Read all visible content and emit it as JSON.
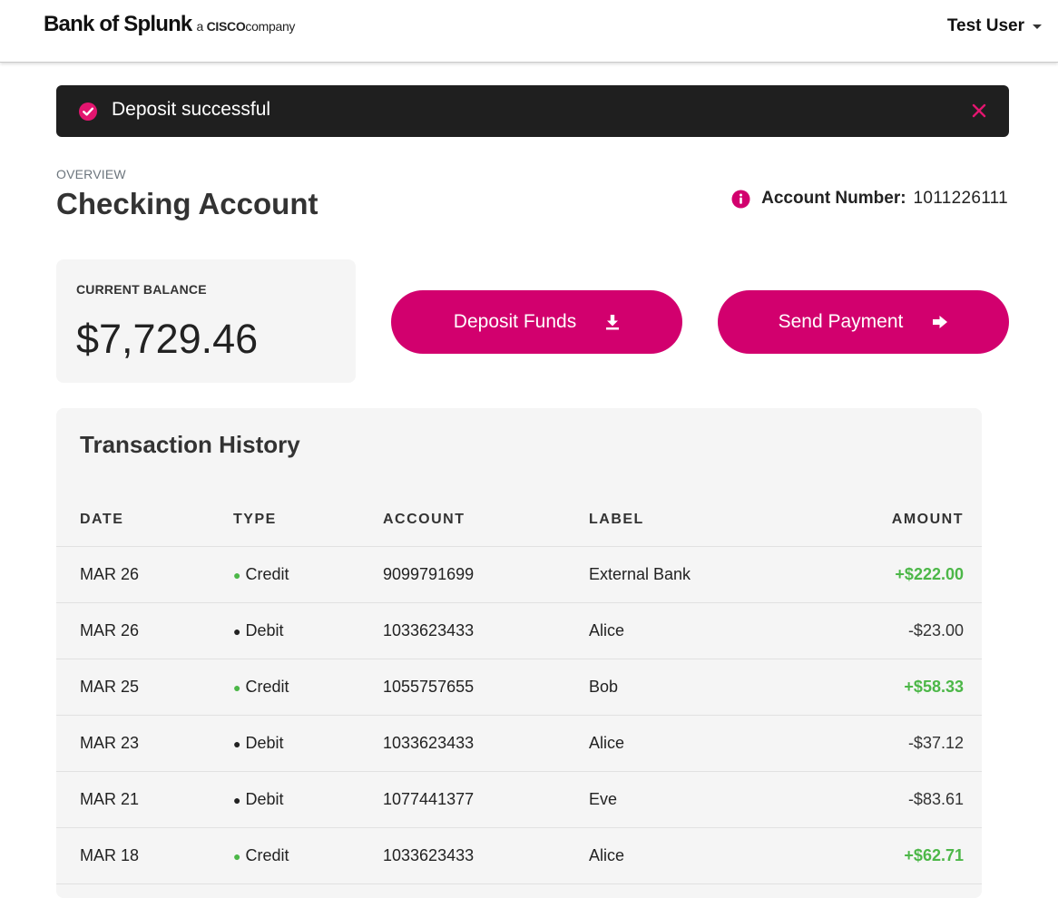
{
  "header": {
    "brand_name": "Bank of Splunk",
    "brand_sub_prefix": "a",
    "brand_sub_cisco": "CISCO",
    "brand_sub_suffix": "company",
    "user_name": "Test User"
  },
  "alert": {
    "message": "Deposit successful",
    "icon": "check-circle-icon",
    "close_icon": "close-icon"
  },
  "overview": {
    "section_label": "OVERVIEW",
    "title": "Checking Account",
    "account_number_label": "Account Number:",
    "account_number": "1011226111"
  },
  "balance": {
    "label": "CURRENT BALANCE",
    "value": "$7,729.46"
  },
  "actions": {
    "deposit_label": "Deposit Funds",
    "deposit_icon": "download-icon",
    "send_label": "Send Payment",
    "send_icon": "arrow-right-icon"
  },
  "transactions": {
    "title": "Transaction History",
    "columns": [
      "DATE",
      "TYPE",
      "ACCOUNT",
      "LABEL",
      "AMOUNT"
    ],
    "rows": [
      {
        "date": "MAR 26",
        "type": "Credit",
        "account": "9099791699",
        "label": "External Bank",
        "amount": "+$222.00"
      },
      {
        "date": "MAR 26",
        "type": "Debit",
        "account": "1033623433",
        "label": "Alice",
        "amount": "-$23.00"
      },
      {
        "date": "MAR 25",
        "type": "Credit",
        "account": "1055757655",
        "label": "Bob",
        "amount": "+$58.33"
      },
      {
        "date": "MAR 23",
        "type": "Debit",
        "account": "1033623433",
        "label": "Alice",
        "amount": "-$37.12"
      },
      {
        "date": "MAR 21",
        "type": "Debit",
        "account": "1077441377",
        "label": "Eve",
        "amount": "-$83.61"
      },
      {
        "date": "MAR 18",
        "type": "Credit",
        "account": "1033623433",
        "label": "Alice",
        "amount": "+$62.71"
      }
    ]
  },
  "colors": {
    "accent": "#d2006e",
    "credit_green": "#4cb748",
    "alert_bg": "#1f1f1f",
    "card_bg": "#f5f5f5"
  }
}
